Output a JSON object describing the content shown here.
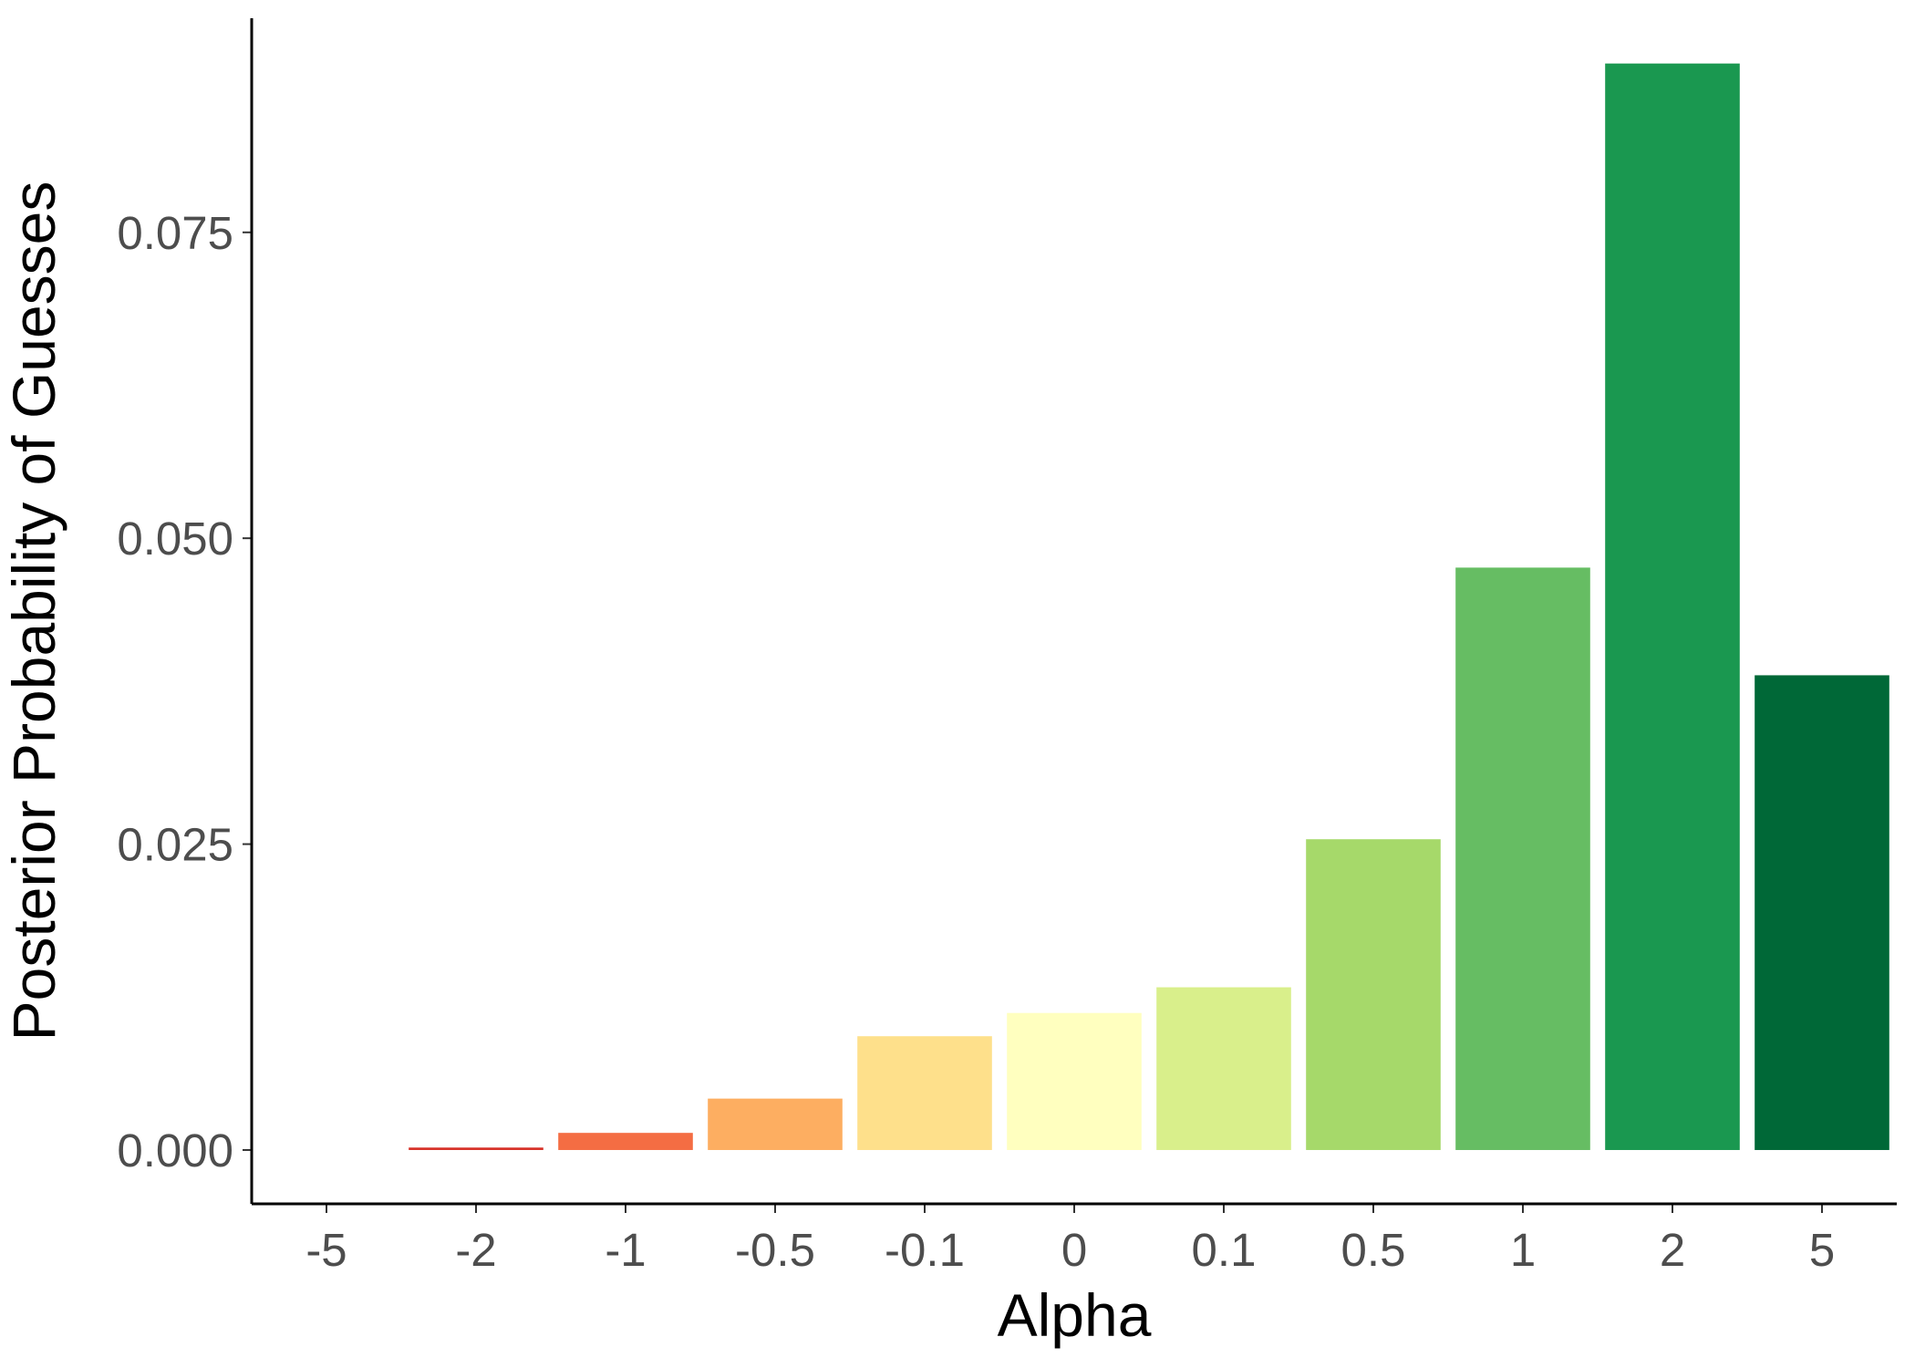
{
  "chart_data": {
    "type": "bar",
    "xlabel": "Alpha",
    "ylabel": "Posterior Probability of Guesses",
    "categories": [
      "-5",
      "-2",
      "-1",
      "-0.5",
      "-0.1",
      "0",
      "0.1",
      "0.5",
      "1",
      "2",
      "5"
    ],
    "values": [
      0.0,
      0.0002,
      0.0014,
      0.0042,
      0.0093,
      0.0112,
      0.0133,
      0.0254,
      0.0476,
      0.0888,
      0.0388
    ],
    "colors": [
      "#A50026",
      "#D73027",
      "#F46D43",
      "#FDAE61",
      "#FEE08B",
      "#FFFFBF",
      "#D9EF8B",
      "#A6D96A",
      "#66BD63",
      "#1A9850",
      "#006837"
    ],
    "yticks": [
      0.0,
      0.025,
      0.05,
      0.075
    ],
    "ytick_labels": [
      "0.000",
      "0.025",
      "0.050",
      "0.075"
    ],
    "ylim": [
      -0.0044,
      0.0925
    ],
    "grid": false,
    "legend": "none"
  }
}
